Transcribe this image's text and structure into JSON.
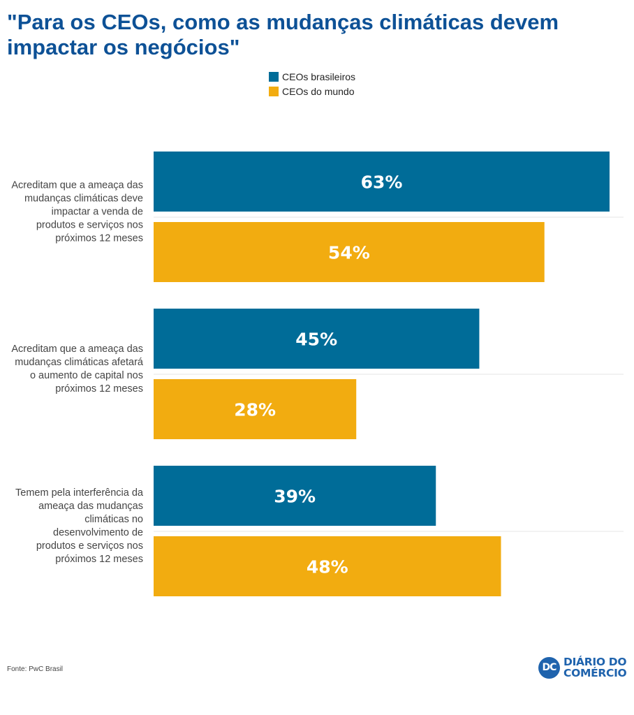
{
  "colors": {
    "brazil": "#006c98",
    "world": "#f2ac10",
    "title": "#0d5196",
    "gridline": "#e6e6e6"
  },
  "source": "Fonte: PwC Brasil",
  "logo": {
    "mark": "DC",
    "line1": "DIÁRIO DO",
    "line2": "COMÉRCIO"
  },
  "chart_data": {
    "type": "bar",
    "orientation": "horizontal",
    "title": "\"Para os CEOs, como as mudanças climáticas devem impactar os negócios\"",
    "xlim": [
      0,
      63
    ],
    "legend_position": "top-center",
    "grid": false,
    "categories": [
      {
        "label_lines": [
          "Acreditam que a ameaça das",
          "mudanças climáticas deve",
          "impactar a venda de",
          "produtos e serviços nos",
          "próximos 12 meses"
        ]
      },
      {
        "label_lines": [
          "Acreditam que a ameaça das",
          "mudanças climáticas afetará",
          "o aumento de capital nos",
          "próximos 12 meses"
        ]
      },
      {
        "label_lines": [
          "Temem pela interferência da",
          "ameaça das mudanças",
          "climáticas no",
          "desenvolvimento de",
          "produtos e serviços nos",
          "próximos 12 meses"
        ]
      }
    ],
    "series": [
      {
        "name": "CEOs brasileiros",
        "values": [
          63,
          45,
          39
        ],
        "labels": [
          "63%",
          "45%",
          "39%"
        ]
      },
      {
        "name": "CEOs do mundo",
        "values": [
          54,
          28,
          48
        ],
        "labels": [
          "54%",
          "28%",
          "48%"
        ]
      }
    ]
  }
}
